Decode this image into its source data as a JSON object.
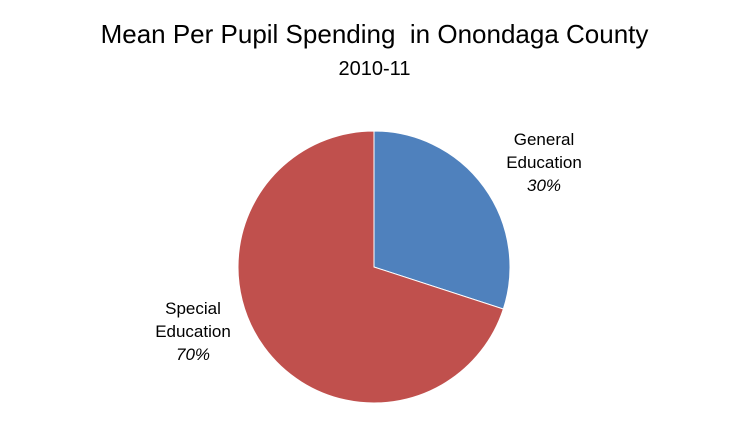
{
  "chart_data": {
    "type": "pie",
    "title": "Mean Per Pupil Spending  in Onondaga County",
    "subtitle": "2010-11",
    "slices": [
      {
        "label_line1": "General",
        "label_line2": "Education",
        "value": 30,
        "value_label": "30%",
        "color": "#4F81BD"
      },
      {
        "label_line1": "Special",
        "label_line2": "Education",
        "value": 70,
        "value_label": "70%",
        "color": "#C0504D"
      }
    ],
    "start_angle": "12 o'clock",
    "direction": "clockwise",
    "legend": "none"
  }
}
